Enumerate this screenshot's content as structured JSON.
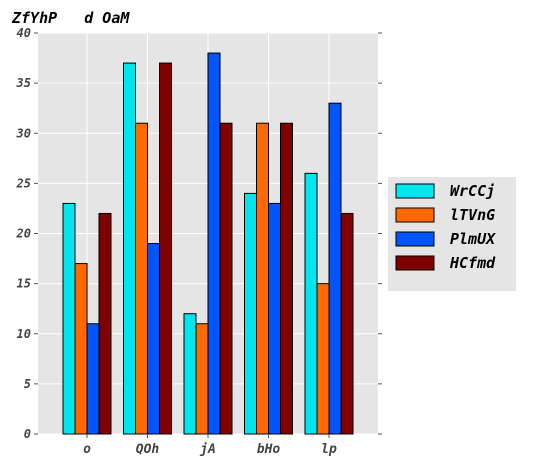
{
  "chart_data": {
    "type": "bar",
    "title": "ZfYhP   d OaM",
    "categories": [
      "o",
      "QOh",
      "jA",
      "bHo",
      "lp"
    ],
    "series": [
      {
        "name": "WrCCj",
        "color": "#00e5ee",
        "values": [
          23,
          37,
          12,
          24,
          26
        ]
      },
      {
        "name": "lTVnG",
        "color": "#ff6a00",
        "values": [
          17,
          31,
          11,
          31,
          15
        ]
      },
      {
        "name": "PlmUX",
        "color": "#0055ff",
        "values": [
          11,
          19,
          38,
          23,
          33
        ]
      },
      {
        "name": "HCfmd",
        "color": "#800000",
        "values": [
          22,
          37,
          31,
          31,
          22
        ]
      }
    ],
    "ylim": [
      0,
      40
    ],
    "yticks": [
      0,
      5,
      10,
      15,
      20,
      25,
      30,
      35,
      40
    ],
    "grid": true,
    "background": "#e5e5e5",
    "legend_position": "right"
  }
}
